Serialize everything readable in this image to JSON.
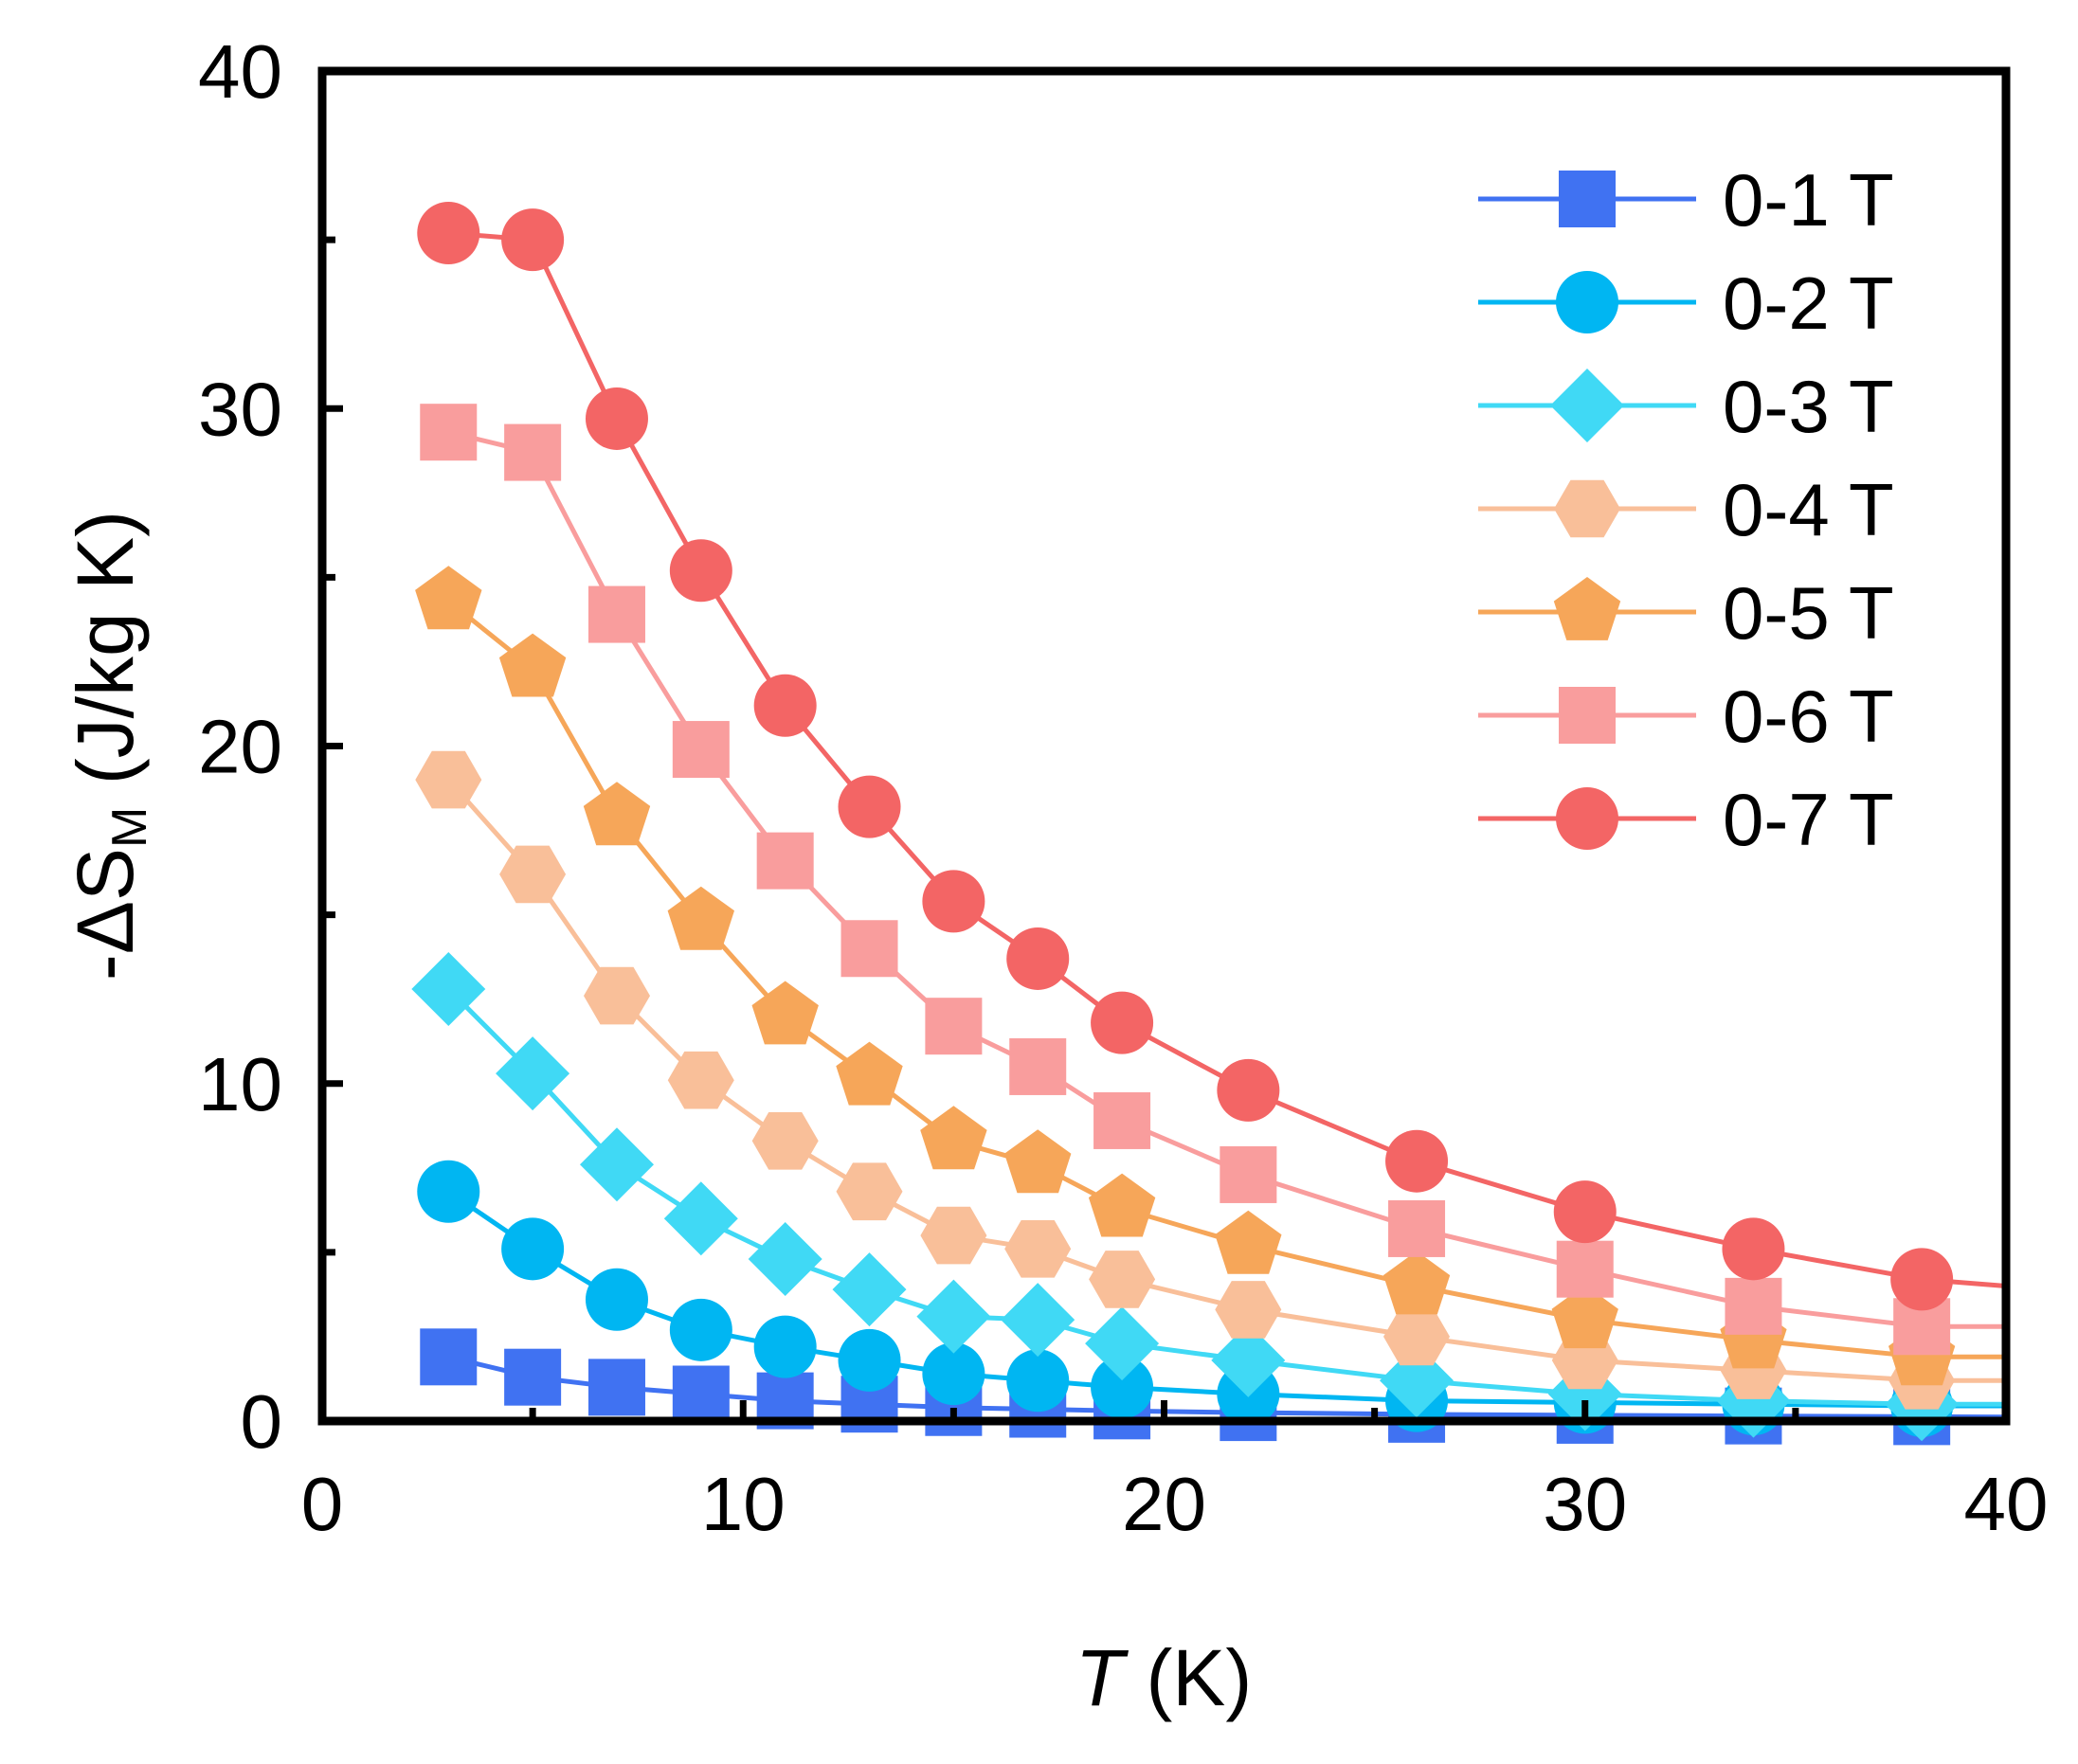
{
  "chart_data": {
    "type": "line",
    "xlabel_italic": "T",
    "xlabel_rest": " (K)",
    "ylabel_prefix": "-ΔS",
    "ylabel_sub": "M",
    "ylabel_suffix": " (J/kg K)",
    "xlim": [
      0,
      40
    ],
    "ylim": [
      0,
      40
    ],
    "xticks": [
      0,
      10,
      20,
      30,
      40
    ],
    "yticks": [
      0,
      10,
      20,
      30,
      40
    ],
    "xtick_labels": [
      "0",
      "10",
      "20",
      "30",
      "40"
    ],
    "ytick_labels": [
      "0",
      "10",
      "20",
      "30",
      "40"
    ],
    "legend_position": "top-right",
    "x": [
      3,
      5,
      7,
      9,
      11,
      13,
      15,
      17,
      19,
      22,
      26,
      30,
      34,
      38,
      40
    ],
    "series": [
      {
        "name": "0-1 T",
        "marker": "square",
        "color": "#4072f2",
        "values": [
          1.9,
          1.3,
          1.0,
          0.8,
          0.6,
          0.5,
          0.4,
          0.35,
          0.3,
          0.25,
          0.2,
          0.17,
          0.15,
          0.13,
          0.12
        ]
      },
      {
        "name": "0-2 T",
        "marker": "circle",
        "color": "#00b6f2",
        "values": [
          6.8,
          5.1,
          3.6,
          2.7,
          2.2,
          1.8,
          1.4,
          1.2,
          1.0,
          0.8,
          0.6,
          0.55,
          0.5,
          0.45,
          0.45
        ]
      },
      {
        "name": "0-3 T",
        "marker": "diamond",
        "color": "#40d9f5",
        "values": [
          12.8,
          10.3,
          7.6,
          6.0,
          4.8,
          3.9,
          3.1,
          3.0,
          2.3,
          1.8,
          1.2,
          0.8,
          0.6,
          0.5,
          0.5
        ]
      },
      {
        "name": "0-4 T",
        "marker": "hexagon",
        "color": "#f9bf99",
        "values": [
          19.0,
          16.2,
          12.6,
          10.1,
          8.3,
          6.8,
          5.5,
          5.1,
          4.2,
          3.3,
          2.5,
          1.8,
          1.5,
          1.2,
          1.2
        ]
      },
      {
        "name": "0-5 T",
        "marker": "pentagon",
        "color": "#f6a659",
        "values": [
          24.3,
          22.3,
          17.9,
          14.8,
          12.0,
          10.2,
          8.3,
          7.6,
          6.3,
          5.2,
          4.0,
          3.0,
          2.4,
          1.9,
          1.9
        ]
      },
      {
        "name": "0-6 T",
        "marker": "square",
        "color": "#f99d9d",
        "values": [
          29.3,
          28.7,
          23.9,
          19.9,
          16.6,
          14.0,
          11.7,
          10.5,
          8.9,
          7.3,
          5.7,
          4.5,
          3.4,
          2.8,
          2.8
        ]
      },
      {
        "name": "0-7 T",
        "marker": "circle",
        "color": "#f36565",
        "values": [
          35.2,
          35.0,
          29.7,
          25.2,
          21.2,
          18.2,
          15.4,
          13.7,
          11.8,
          9.8,
          7.7,
          6.2,
          5.1,
          4.2,
          4.0
        ]
      }
    ]
  }
}
